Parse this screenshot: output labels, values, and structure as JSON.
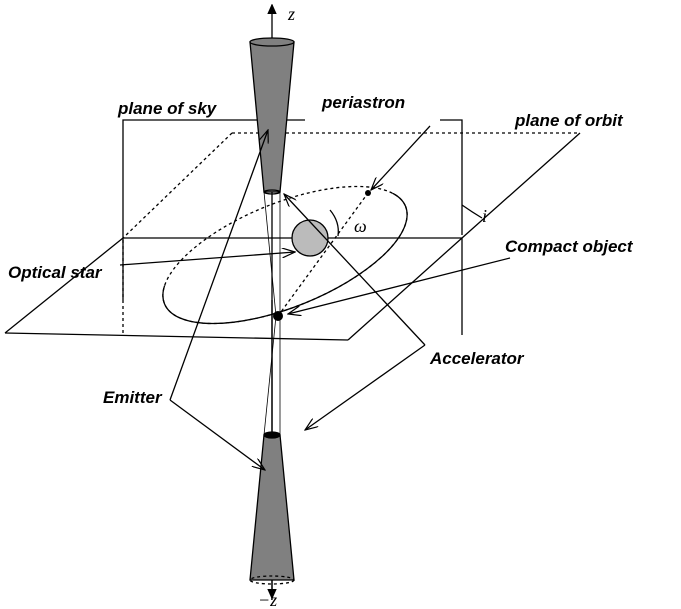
{
  "labels": {
    "z": "z",
    "minus_z": "−z",
    "plane_of_sky": "plane of sky",
    "periastron": "periastron",
    "plane_of_orbit": "plane of orbit",
    "inclination": "i",
    "omega": "ω",
    "optical_star": "Optical star",
    "compact_object": "Compact object",
    "accelerator": "Accelerator",
    "emitter": "Emitter"
  }
}
